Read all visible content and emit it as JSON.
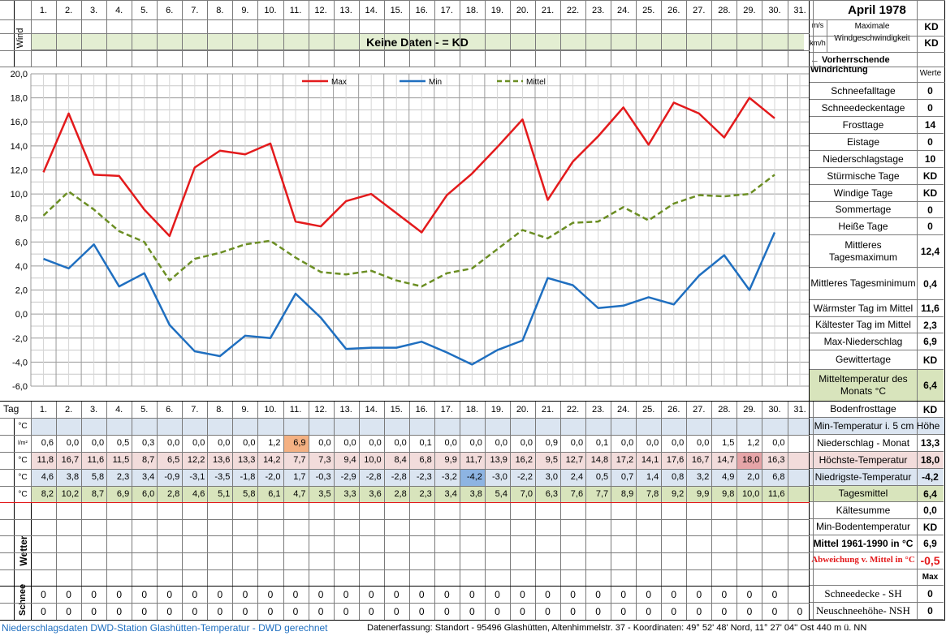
{
  "header": {
    "month_title": "April 1978",
    "day_numbers": [
      "1.",
      "2.",
      "3.",
      "4.",
      "5.",
      "6.",
      "7.",
      "8.",
      "9.",
      "10.",
      "11.",
      "12.",
      "13.",
      "14.",
      "15.",
      "16.",
      "17.",
      "18.",
      "19.",
      "20.",
      "21.",
      "22.",
      "23.",
      "24.",
      "25.",
      "26.",
      "27.",
      "28.",
      "29.",
      "30.",
      "31."
    ],
    "wind_label": "Wind",
    "no_data_text": "Keine Daten -  = KD",
    "unit_ms": "m/s",
    "unit_kmh": "km/h",
    "max_wind_label": "Maximale Windgeschwindigkeit",
    "max_wind_ms": "KD",
    "max_wind_kmh": "KD",
    "prevailing_wind_label": "← Vorherrschende Windrichtung",
    "werte_label": "Werte",
    "tag_label": "Tag"
  },
  "stats": [
    {
      "label": "Schneefalltage",
      "value": "0",
      "h": 21
    },
    {
      "label": "Schneedeckentage",
      "value": "0",
      "h": 21
    },
    {
      "label": "Frosttage",
      "value": "14",
      "h": 21
    },
    {
      "label": "Eistage",
      "value": "0",
      "h": 21
    },
    {
      "label": "Niederschlagstage",
      "value": "10",
      "h": 21
    },
    {
      "label": "Stürmische Tage",
      "value": "KD",
      "h": 21
    },
    {
      "label": "Windige Tage",
      "value": "KD",
      "h": 21
    },
    {
      "label": "Sommertage",
      "value": "0",
      "h": 20
    },
    {
      "label": "Heiße Tage",
      "value": "0",
      "h": 21
    },
    {
      "label": "Mittleres Tagesmaximum",
      "value": "12,4",
      "h": 40
    },
    {
      "label": "Mittleres Tagesminimum",
      "value": "0,4",
      "h": 40
    },
    {
      "label": "Wärmster Tag im Mittel",
      "value": "11,6",
      "h": 21
    },
    {
      "label": "Kältester Tag im Mittel",
      "value": "2,3",
      "h": 20
    },
    {
      "label": "Max-Niederschlag",
      "value": "6,9",
      "h": 21
    },
    {
      "label": "Gewittertage",
      "value": "KD",
      "h": 24
    },
    {
      "label": "Mitteltemperatur des Monats °C",
      "value": "6,4",
      "h": 39,
      "green": true
    },
    {
      "label": "Bodenfrosttage",
      "value": "KD",
      "h": 20
    }
  ],
  "rows": {
    "units": [
      "°C",
      "l/m²",
      "°C",
      "°C",
      "°C"
    ],
    "min5cm_label": "Min-Temperatur i. 5 cm Höhe",
    "precip": [
      "0,6",
      "0,0",
      "0,0",
      "0,5",
      "0,3",
      "0,0",
      "0,0",
      "0,0",
      "0,0",
      "1,2",
      "6,9",
      "0,0",
      "0,0",
      "0,0",
      "0,0",
      "0,1",
      "0,0",
      "0,0",
      "0,0",
      "0,0",
      "0,9",
      "0,0",
      "0,1",
      "0,0",
      "0,0",
      "0,0",
      "0,0",
      "1,5",
      "1,2",
      "0,0",
      ""
    ],
    "precip_label": "Niederschlag - Monat",
    "precip_total": "13,3",
    "max": [
      "11,8",
      "16,7",
      "11,6",
      "11,5",
      "8,7",
      "6,5",
      "12,2",
      "13,6",
      "13,3",
      "14,2",
      "7,7",
      "7,3",
      "9,4",
      "10,0",
      "8,4",
      "6,8",
      "9,9",
      "11,7",
      "13,9",
      "16,2",
      "9,5",
      "12,7",
      "14,8",
      "17,2",
      "14,1",
      "17,6",
      "16,7",
      "14,7",
      "18,0",
      "16,3",
      ""
    ],
    "max_label": "Höchste-Temperatur",
    "max_value": "18,0",
    "min": [
      "4,6",
      "3,8",
      "5,8",
      "2,3",
      "3,4",
      "-0,9",
      "-3,1",
      "-3,5",
      "-1,8",
      "-2,0",
      "1,7",
      "-0,3",
      "-2,9",
      "-2,8",
      "-2,8",
      "-2,3",
      "-3,2",
      "-4,2",
      "-3,0",
      "-2,2",
      "3,0",
      "2,4",
      "0,5",
      "0,7",
      "1,4",
      "0,8",
      "3,2",
      "4,9",
      "2,0",
      "6,8",
      ""
    ],
    "min_label": "Niedrigste-Temperatur",
    "min_value": "-4,2",
    "mean": [
      "8,2",
      "10,2",
      "8,7",
      "6,9",
      "6,0",
      "2,8",
      "4,6",
      "5,1",
      "5,8",
      "6,1",
      "4,7",
      "3,5",
      "3,3",
      "3,6",
      "2,8",
      "2,3",
      "3,4",
      "3,8",
      "5,4",
      "7,0",
      "6,3",
      "7,6",
      "7,7",
      "8,9",
      "7,8",
      "9,2",
      "9,9",
      "9,8",
      "10,0",
      "11,6",
      ""
    ],
    "mean_label": "Tagesmittel",
    "mean_value": "6,4"
  },
  "weather": {
    "label": "Wetter",
    "kaeltesumme_label": "Kältesumme",
    "kaeltesumme_value": "0,0",
    "min_boden_label": "Min-Bodentemperatur",
    "min_boden_value": "KD",
    "mittel_label": "Mittel 1961-1990 in °C",
    "mittel_value": "6,9",
    "abweichung_label": "Abweichung v. Mittel in °C",
    "abweichung_value": "-0,5",
    "max_label": "Max"
  },
  "snow": {
    "label": "Schnee",
    "sh": [
      "0",
      "0",
      "0",
      "0",
      "0",
      "0",
      "0",
      "0",
      "0",
      "0",
      "0",
      "0",
      "0",
      "0",
      "0",
      "0",
      "0",
      "0",
      "0",
      "0",
      "0",
      "0",
      "0",
      "0",
      "0",
      "0",
      "0",
      "0",
      "0",
      "0",
      ""
    ],
    "nsh": [
      "0",
      "0",
      "0",
      "0",
      "0",
      "0",
      "0",
      "0",
      "0",
      "0",
      "0",
      "0",
      "0",
      "0",
      "0",
      "0",
      "0",
      "0",
      "0",
      "0",
      "0",
      "0",
      "0",
      "0",
      "0",
      "0",
      "0",
      "0",
      "0",
      "0",
      "0"
    ],
    "sh_label": "Schneedecke -  SH",
    "sh_value": "0",
    "nsh_label": "Neuschneehöhe- NSH",
    "nsh_value": "0"
  },
  "footer": {
    "left": "Niederschlagsdaten DWD-Station Glashütten-Temperatur -  DWD gerechnet",
    "right": "Datenerfassung:  Standort -  95496  Glashütten, Altenhimmelstr. 37 - Koordinaten:  49° 52' 48' Nord,   11° 27' 04'' Ost   440 m ü. NN"
  },
  "chart_data": {
    "type": "line",
    "x": [
      1,
      2,
      3,
      4,
      5,
      6,
      7,
      8,
      9,
      10,
      11,
      12,
      13,
      14,
      15,
      16,
      17,
      18,
      19,
      20,
      21,
      22,
      23,
      24,
      25,
      26,
      27,
      28,
      29,
      30
    ],
    "series": [
      {
        "name": "Max",
        "color": "#e31a1c",
        "style": "solid",
        "values": [
          11.8,
          16.7,
          11.6,
          11.5,
          8.7,
          6.5,
          12.2,
          13.6,
          13.3,
          14.2,
          7.7,
          7.3,
          9.4,
          10.0,
          8.4,
          6.8,
          9.9,
          11.7,
          13.9,
          16.2,
          9.5,
          12.7,
          14.8,
          17.2,
          14.1,
          17.6,
          16.7,
          14.7,
          18.0,
          16.3
        ]
      },
      {
        "name": "Min",
        "color": "#1f6fc0",
        "style": "solid",
        "values": [
          4.6,
          3.8,
          5.8,
          2.3,
          3.4,
          -0.9,
          -3.1,
          -3.5,
          -1.8,
          -2.0,
          1.7,
          -0.3,
          -2.9,
          -2.8,
          -2.8,
          -2.3,
          -3.2,
          -4.2,
          -3.0,
          -2.2,
          3.0,
          2.4,
          0.5,
          0.7,
          1.4,
          0.8,
          3.2,
          4.9,
          2.0,
          6.8
        ]
      },
      {
        "name": "Mittel",
        "color": "#6b8e23",
        "style": "dashed",
        "values": [
          8.2,
          10.2,
          8.7,
          6.9,
          6.0,
          2.8,
          4.6,
          5.1,
          5.8,
          6.1,
          4.7,
          3.5,
          3.3,
          3.6,
          2.8,
          2.3,
          3.4,
          3.8,
          5.4,
          7.0,
          6.3,
          7.6,
          7.7,
          8.9,
          7.8,
          9.2,
          9.9,
          9.8,
          10.0,
          11.6
        ]
      }
    ],
    "yticks": [
      "20,0",
      "18,0",
      "16,0",
      "14,0",
      "12,0",
      "10,0",
      "8,0",
      "6,0",
      "4,0",
      "2,0",
      "0,0",
      "-2,0",
      "-4,0",
      "-6,0"
    ],
    "ylim": [
      -6,
      20
    ],
    "grid": true,
    "legend_position": "top"
  }
}
